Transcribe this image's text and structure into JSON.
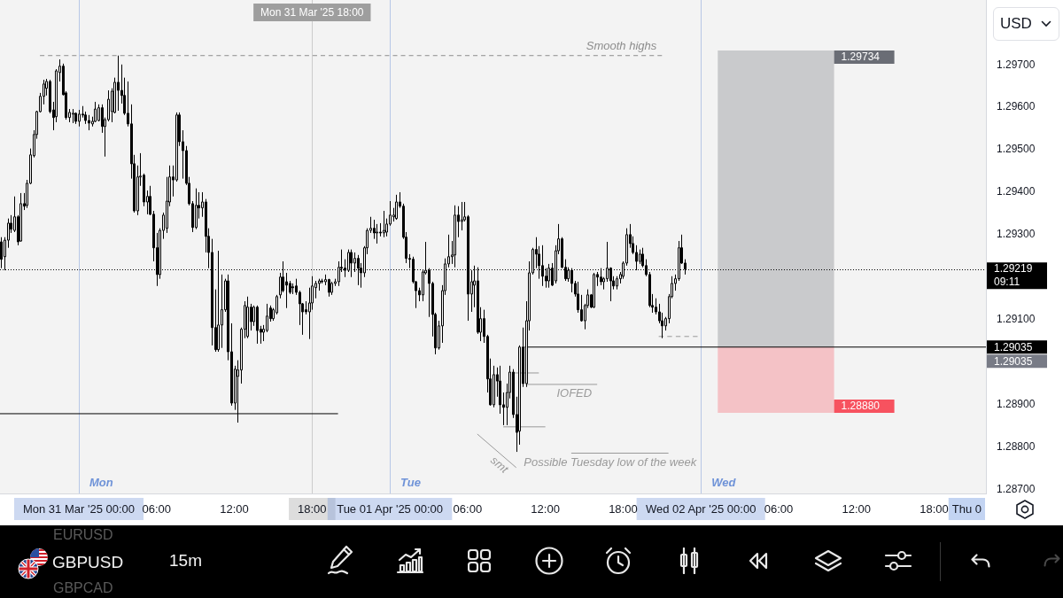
{
  "chart_data": {
    "type": "candlestick",
    "title": "GBPUSD",
    "subtitle": "15m",
    "ylabel": "USD",
    "color": "#000000",
    "x": [
      "2025-03-30T18:00",
      "2025-03-30T18:15",
      "2025-03-30T18:30",
      "2025-03-30T18:45",
      "2025-03-30T19:00",
      "2025-03-30T19:15",
      "2025-03-30T19:30",
      "2025-03-30T19:45",
      "2025-03-30T20:00",
      "2025-03-30T20:15",
      "2025-03-30T20:30",
      "2025-03-30T20:45",
      "2025-03-30T21:00",
      "2025-03-30T21:15",
      "2025-03-30T21:30",
      "2025-03-30T21:45",
      "2025-03-30T22:00",
      "2025-03-30T22:15",
      "2025-03-30T22:30",
      "2025-03-30T22:45",
      "2025-03-30T23:00",
      "2025-03-30T23:15",
      "2025-03-30T23:30",
      "2025-03-30T23:45",
      "2025-03-31T00:00",
      "2025-03-31T00:15",
      "2025-03-31T00:30",
      "2025-03-31T00:45",
      "2025-03-31T01:00",
      "2025-03-31T01:15",
      "2025-03-31T01:30",
      "2025-03-31T01:45",
      "2025-03-31T02:00",
      "2025-03-31T02:15",
      "2025-03-31T02:30",
      "2025-03-31T02:45",
      "2025-03-31T03:00",
      "2025-03-31T03:15",
      "2025-03-31T03:30",
      "2025-03-31T03:45",
      "2025-03-31T04:00",
      "2025-03-31T04:15",
      "2025-03-31T04:30",
      "2025-03-31T04:45",
      "2025-03-31T05:00",
      "2025-03-31T05:15",
      "2025-03-31T05:30",
      "2025-03-31T05:45",
      "2025-03-31T06:00",
      "2025-03-31T06:15",
      "2025-03-31T06:30",
      "2025-03-31T06:45",
      "2025-03-31T07:00",
      "2025-03-31T07:15",
      "2025-03-31T07:30",
      "2025-03-31T07:45",
      "2025-03-31T08:00",
      "2025-03-31T08:15",
      "2025-03-31T08:30",
      "2025-03-31T08:45",
      "2025-03-31T09:00",
      "2025-03-31T09:15",
      "2025-03-31T09:30",
      "2025-03-31T09:45",
      "2025-03-31T10:00",
      "2025-03-31T10:15",
      "2025-03-31T10:30",
      "2025-03-31T10:45",
      "2025-03-31T11:00",
      "2025-03-31T11:15",
      "2025-03-31T11:30",
      "2025-03-31T11:45",
      "2025-03-31T12:00",
      "2025-03-31T12:15",
      "2025-03-31T12:30",
      "2025-03-31T12:45",
      "2025-03-31T13:00",
      "2025-03-31T13:15",
      "2025-03-31T13:30",
      "2025-03-31T13:45",
      "2025-03-31T14:00",
      "2025-03-31T14:15",
      "2025-03-31T14:30",
      "2025-03-31T14:45",
      "2025-03-31T15:00",
      "2025-03-31T15:15",
      "2025-03-31T15:30",
      "2025-03-31T15:45",
      "2025-03-31T16:00",
      "2025-03-31T16:15",
      "2025-03-31T16:30",
      "2025-03-31T16:45",
      "2025-03-31T17:00",
      "2025-03-31T17:15",
      "2025-03-31T17:30",
      "2025-03-31T17:45",
      "2025-03-31T18:00",
      "2025-03-31T18:15",
      "2025-03-31T18:30",
      "2025-03-31T18:45",
      "2025-03-31T19:00",
      "2025-03-31T19:15",
      "2025-03-31T19:30",
      "2025-03-31T19:45",
      "2025-03-31T20:00",
      "2025-03-31T20:15",
      "2025-03-31T20:30",
      "2025-03-31T20:45",
      "2025-03-31T21:00",
      "2025-03-31T21:15",
      "2025-03-31T21:30",
      "2025-03-31T21:45",
      "2025-03-31T22:00",
      "2025-03-31T22:15",
      "2025-03-31T22:30",
      "2025-03-31T22:45",
      "2025-03-31T23:00",
      "2025-03-31T23:15",
      "2025-03-31T23:30",
      "2025-03-31T23:45",
      "2025-04-01T00:00",
      "2025-04-01T00:15",
      "2025-04-01T00:30",
      "2025-04-01T00:45",
      "2025-04-01T01:00",
      "2025-04-01T01:15",
      "2025-04-01T01:30",
      "2025-04-01T01:45",
      "2025-04-01T02:00",
      "2025-04-01T02:15",
      "2025-04-01T02:30",
      "2025-04-01T02:45",
      "2025-04-01T03:00",
      "2025-04-01T03:15",
      "2025-04-01T03:30",
      "2025-04-01T03:45",
      "2025-04-01T04:00",
      "2025-04-01T04:15",
      "2025-04-01T04:30",
      "2025-04-01T04:45",
      "2025-04-01T05:00",
      "2025-04-01T05:15",
      "2025-04-01T05:30",
      "2025-04-01T05:45",
      "2025-04-01T06:00",
      "2025-04-01T06:15",
      "2025-04-01T06:30",
      "2025-04-01T06:45",
      "2025-04-01T07:00",
      "2025-04-01T07:15",
      "2025-04-01T07:30",
      "2025-04-01T07:45",
      "2025-04-01T08:00",
      "2025-04-01T08:15",
      "2025-04-01T08:30",
      "2025-04-01T08:45",
      "2025-04-01T09:00",
      "2025-04-01T09:15",
      "2025-04-01T09:30",
      "2025-04-01T09:45",
      "2025-04-01T10:00",
      "2025-04-01T10:15",
      "2025-04-01T10:30",
      "2025-04-01T10:45",
      "2025-04-01T11:00",
      "2025-04-01T11:15",
      "2025-04-01T11:30",
      "2025-04-01T11:45",
      "2025-04-01T12:00",
      "2025-04-01T12:15",
      "2025-04-01T12:30",
      "2025-04-01T12:45",
      "2025-04-01T13:00",
      "2025-04-01T13:15",
      "2025-04-01T13:30",
      "2025-04-01T13:45",
      "2025-04-01T14:00",
      "2025-04-01T14:15",
      "2025-04-01T14:30",
      "2025-04-01T14:45",
      "2025-04-01T15:00",
      "2025-04-01T15:15",
      "2025-04-01T15:30",
      "2025-04-01T15:45",
      "2025-04-01T16:00",
      "2025-04-01T16:15",
      "2025-04-01T16:30",
      "2025-04-01T16:45",
      "2025-04-01T17:00",
      "2025-04-01T17:15",
      "2025-04-01T17:30",
      "2025-04-01T17:45",
      "2025-04-01T18:00",
      "2025-04-01T18:15",
      "2025-04-01T18:30",
      "2025-04-01T18:45",
      "2025-04-01T19:00",
      "2025-04-01T19:15",
      "2025-04-01T19:30",
      "2025-04-01T19:45",
      "2025-04-01T20:00",
      "2025-04-01T20:15",
      "2025-04-01T20:30",
      "2025-04-01T20:45",
      "2025-04-01T21:00",
      "2025-04-01T21:15",
      "2025-04-01T21:30",
      "2025-04-01T21:45",
      "2025-04-01T22:00",
      "2025-04-01T22:15",
      "2025-04-01T22:30",
      "2025-04-01T22:45"
    ],
    "ohlc": [
      [
        1.29283,
        1.29294,
        1.29221,
        1.29242
      ],
      [
        1.29248,
        1.29294,
        1.29216,
        1.29287
      ],
      [
        1.29287,
        1.29338,
        1.29269,
        1.29327
      ],
      [
        1.29327,
        1.29346,
        1.29304,
        1.29313
      ],
      [
        1.2931,
        1.2939,
        1.29306,
        1.29342
      ],
      [
        1.29342,
        1.29346,
        1.29275,
        1.29283
      ],
      [
        1.29285,
        1.29398,
        1.29283,
        1.29373
      ],
      [
        1.29373,
        1.29398,
        1.29358,
        1.29367
      ],
      [
        1.29369,
        1.29429,
        1.29363,
        1.29421
      ],
      [
        1.29421,
        1.29503,
        1.29419,
        1.29488
      ],
      [
        1.29486,
        1.29546,
        1.29482,
        1.29536
      ],
      [
        1.29536,
        1.29592,
        1.29526,
        1.2959
      ],
      [
        1.2959,
        1.29634,
        1.29588,
        1.29626
      ],
      [
        1.29626,
        1.29665,
        1.29607,
        1.29655
      ],
      [
        1.29645,
        1.29667,
        1.29628,
        1.29661
      ],
      [
        1.29661,
        1.29665,
        1.29586,
        1.2959
      ],
      [
        1.29594,
        1.29613,
        1.29546,
        1.29576
      ],
      [
        1.29578,
        1.2969,
        1.29565,
        1.29686
      ],
      [
        1.29682,
        1.29713,
        1.29661,
        1.29697
      ],
      [
        1.29697,
        1.29703,
        1.29628,
        1.2963
      ],
      [
        1.29634,
        1.29638,
        1.29571,
        1.29576
      ],
      [
        1.29576,
        1.29596,
        1.29565,
        1.29588
      ],
      [
        1.29584,
        1.29596,
        1.29563,
        1.29586
      ],
      [
        1.29586,
        1.29588,
        1.29561,
        1.29567
      ],
      [
        1.29567,
        1.29594,
        1.29555,
        1.29584
      ],
      [
        1.29584,
        1.29603,
        1.29576,
        1.29582
      ],
      [
        1.29582,
        1.2959,
        1.29561,
        1.29569
      ],
      [
        1.29569,
        1.29582,
        1.29546,
        1.29563
      ],
      [
        1.29561,
        1.29578,
        1.29555,
        1.29567
      ],
      [
        1.29567,
        1.29613,
        1.29565,
        1.29596
      ],
      [
        1.29569,
        1.29607,
        1.29567,
        1.29599
      ],
      [
        1.29599,
        1.29607,
        1.2954,
        1.29555
      ],
      [
        1.29555,
        1.29576,
        1.29484,
        1.29571
      ],
      [
        1.29571,
        1.2964,
        1.29567,
        1.29619
      ],
      [
        1.2959,
        1.29645,
        1.29565,
        1.29638
      ],
      [
        1.29588,
        1.2967,
        1.29586,
        1.29659
      ],
      [
        1.29659,
        1.29722,
        1.29592,
        1.2964
      ],
      [
        1.2964,
        1.29701,
        1.29609,
        1.29628
      ],
      [
        1.29628,
        1.2967,
        1.29582,
        1.29586
      ],
      [
        1.29586,
        1.29661,
        1.29555,
        1.29561
      ],
      [
        1.29561,
        1.29607,
        1.29432,
        1.29467
      ],
      [
        1.29467,
        1.29488,
        1.29352,
        1.29356
      ],
      [
        1.29356,
        1.29463,
        1.29346,
        1.29436
      ],
      [
        1.29436,
        1.29492,
        1.29415,
        1.29438
      ],
      [
        1.2944,
        1.29444,
        1.29367,
        1.29377
      ],
      [
        1.29377,
        1.29404,
        1.29348,
        1.2939
      ],
      [
        1.2939,
        1.29415,
        1.29346,
        1.29348
      ],
      [
        1.29348,
        1.29356,
        1.29237,
        1.29269
      ],
      [
        1.29269,
        1.29304,
        1.29179,
        1.29206
      ],
      [
        1.29206,
        1.29315,
        1.29196,
        1.2931
      ],
      [
        1.2931,
        1.29352,
        1.2929,
        1.29346
      ],
      [
        1.29315,
        1.29436,
        1.29304,
        1.29379
      ],
      [
        1.29377,
        1.29463,
        1.29367,
        1.29436
      ],
      [
        1.29436,
        1.29463,
        1.2939,
        1.29429
      ],
      [
        1.29429,
        1.29588,
        1.29425,
        1.29582
      ],
      [
        1.29582,
        1.29588,
        1.29509,
        1.29519
      ],
      [
        1.29519,
        1.29546,
        1.29432,
        1.29498
      ],
      [
        1.29498,
        1.29509,
        1.29417,
        1.29421
      ],
      [
        1.29421,
        1.29436,
        1.29369,
        1.29373
      ],
      [
        1.29373,
        1.29379,
        1.29306,
        1.29317
      ],
      [
        1.29317,
        1.29409,
        1.29313,
        1.29369
      ],
      [
        1.29369,
        1.294,
        1.29338,
        1.29363
      ],
      [
        1.29363,
        1.294,
        1.29342,
        1.29377
      ],
      [
        1.29377,
        1.29384,
        1.29258,
        1.29296
      ],
      [
        1.29296,
        1.29315,
        1.29221,
        1.29258
      ],
      [
        1.29258,
        1.2929,
        1.29039,
        1.29081
      ],
      [
        1.29081,
        1.29171,
        1.29024,
        1.29029
      ],
      [
        1.29029,
        1.29262,
        1.29024,
        1.29087
      ],
      [
        1.29087,
        1.29206,
        1.29033,
        1.29123
      ],
      [
        1.29123,
        1.29196,
        1.29118,
        1.29191
      ],
      [
        1.29191,
        1.29206,
        1.29004,
        1.29024
      ],
      [
        1.29024,
        1.29091,
        1.28897,
        1.28903
      ],
      [
        1.28903,
        1.28991,
        1.28887,
        1.28983
      ],
      [
        1.28966,
        1.29004,
        1.28857,
        1.28981
      ],
      [
        1.28981,
        1.29081,
        1.28949,
        1.29077
      ],
      [
        1.29077,
        1.29143,
        1.29056,
        1.29133
      ],
      [
        1.2906,
        1.29154,
        1.29056,
        1.29129
      ],
      [
        1.29129,
        1.29137,
        1.29074,
        1.29095
      ],
      [
        1.29095,
        1.29133,
        1.29085,
        1.29129
      ],
      [
        1.29129,
        1.29133,
        1.29043,
        1.29074
      ],
      [
        1.29077,
        1.29085,
        1.29043,
        1.2907
      ],
      [
        1.2907,
        1.29087,
        1.29049,
        1.29077
      ],
      [
        1.29074,
        1.29137,
        1.2907,
        1.29108
      ],
      [
        1.29127,
        1.29133,
        1.29095,
        1.29102
      ],
      [
        1.29102,
        1.29127,
        1.29097,
        1.29123
      ],
      [
        1.29116,
        1.29158,
        1.29112,
        1.29154
      ],
      [
        1.29158,
        1.2921,
        1.2915,
        1.292
      ],
      [
        1.292,
        1.29237,
        1.29164,
        1.29168
      ],
      [
        1.29189,
        1.2921,
        1.29127,
        1.29181
      ],
      [
        1.29185,
        1.29191,
        1.2916,
        1.29164
      ],
      [
        1.29177,
        1.29185,
        1.2916,
        1.29175
      ],
      [
        1.29179,
        1.29196,
        1.29158,
        1.29164
      ],
      [
        1.29164,
        1.29168,
        1.29087,
        1.29137
      ],
      [
        1.29137,
        1.29139,
        1.29064,
        1.29118
      ],
      [
        1.29123,
        1.29143,
        1.29112,
        1.29118
      ],
      [
        1.29118,
        1.29175,
        1.29054,
        1.29139
      ],
      [
        1.29139,
        1.29202,
        1.29123,
        1.29179
      ],
      [
        1.29175,
        1.29191,
        1.2915,
        1.29185
      ],
      [
        1.29185,
        1.29196,
        1.29168,
        1.29191
      ],
      [
        1.29191,
        1.29196,
        1.29185,
        1.29189
      ],
      [
        1.29189,
        1.29206,
        1.29181,
        1.29194
      ],
      [
        1.29194,
        1.29196,
        1.29154,
        1.29164
      ],
      [
        1.29164,
        1.29189,
        1.29158,
        1.29185
      ],
      [
        1.29185,
        1.29196,
        1.29179,
        1.29189
      ],
      [
        1.29189,
        1.29237,
        1.29179,
        1.29223
      ],
      [
        1.29223,
        1.29265,
        1.29212,
        1.29221
      ],
      [
        1.29221,
        1.29242,
        1.292,
        1.29216
      ],
      [
        1.29216,
        1.29265,
        1.29212,
        1.29258
      ],
      [
        1.29258,
        1.29265,
        1.292,
        1.29233
      ],
      [
        1.29233,
        1.29258,
        1.29212,
        1.29244
      ],
      [
        1.29244,
        1.29252,
        1.29181,
        1.29221
      ],
      [
        1.29221,
        1.29233,
        1.29175,
        1.2921
      ],
      [
        1.2921,
        1.29273,
        1.292,
        1.29269
      ],
      [
        1.29269,
        1.29315,
        1.29254,
        1.2931
      ],
      [
        1.2931,
        1.29342,
        1.29304,
        1.29315
      ],
      [
        1.29315,
        1.29335,
        1.2929,
        1.29304
      ],
      [
        1.29304,
        1.29325,
        1.29279,
        1.29306
      ],
      [
        1.29306,
        1.29327,
        1.29296,
        1.29304
      ],
      [
        1.29304,
        1.29356,
        1.29294,
        1.2931
      ],
      [
        1.29306,
        1.29338,
        1.29296,
        1.29325
      ],
      [
        1.29325,
        1.29379,
        1.29321,
        1.29346
      ],
      [
        1.29342,
        1.29363,
        1.29331,
        1.29346
      ],
      [
        1.29338,
        1.29394,
        1.29335,
        1.29377
      ],
      [
        1.29377,
        1.294,
        1.29363,
        1.29367
      ],
      [
        1.29367,
        1.29373,
        1.2929,
        1.29294
      ],
      [
        1.29294,
        1.29306,
        1.29233,
        1.29244
      ],
      [
        1.29244,
        1.29254,
        1.29221,
        1.29242
      ],
      [
        1.29242,
        1.29248,
        1.29185,
        1.29189
      ],
      [
        1.29189,
        1.29191,
        1.29127,
        1.29168
      ],
      [
        1.29168,
        1.29175,
        1.29143,
        1.29158
      ],
      [
        1.29158,
        1.29216,
        1.29143,
        1.29212
      ],
      [
        1.2921,
        1.29283,
        1.29206,
        1.29216
      ],
      [
        1.29216,
        1.29221,
        1.29106,
        1.29185
      ],
      [
        1.29185,
        1.29189,
        1.2906,
        1.29112
      ],
      [
        1.29112,
        1.29116,
        1.29018,
        1.29033
      ],
      [
        1.29033,
        1.29097,
        1.29029,
        1.29085
      ],
      [
        1.29085,
        1.29181,
        1.29045,
        1.29168
      ],
      [
        1.29168,
        1.29244,
        1.29158,
        1.29231
      ],
      [
        1.29231,
        1.293,
        1.29223,
        1.29248
      ],
      [
        1.29248,
        1.29285,
        1.29231,
        1.29252
      ],
      [
        1.29252,
        1.29369,
        1.29223,
        1.29346
      ],
      [
        1.29346,
        1.29367,
        1.29294,
        1.29331
      ],
      [
        1.29331,
        1.29377,
        1.2931,
        1.29335
      ],
      [
        1.29335,
        1.29377,
        1.29331,
        1.29342
      ],
      [
        1.29342,
        1.29346,
        1.29097,
        1.2916
      ],
      [
        1.2916,
        1.29216,
        1.29118,
        1.29189
      ],
      [
        1.29181,
        1.29227,
        1.29129,
        1.29191
      ],
      [
        1.29191,
        1.29223,
        1.29066,
        1.2907
      ],
      [
        1.2907,
        1.29129,
        1.29049,
        1.29102
      ],
      [
        1.29102,
        1.29123,
        1.29045,
        1.2906
      ],
      [
        1.2906,
        1.29064,
        1.28928,
        1.2896
      ],
      [
        1.2896,
        1.29008,
        1.28897,
        1.28899
      ],
      [
        1.28899,
        1.28991,
        1.28893,
        1.2897
      ],
      [
        1.2897,
        1.28987,
        1.28918,
        1.28955
      ],
      [
        1.28955,
        1.28991,
        1.28878,
        1.28899
      ],
      [
        1.28899,
        1.28928,
        1.28851,
        1.28893
      ],
      [
        1.28893,
        1.28949,
        1.28851,
        1.28928
      ],
      [
        1.28928,
        1.28991,
        1.28914,
        1.28976
      ],
      [
        1.28976,
        1.28983,
        1.28868,
        1.28876
      ],
      [
        1.28876,
        1.28918,
        1.28788,
        1.28834
      ],
      [
        1.28837,
        1.29039,
        1.28805,
        1.29035
      ],
      [
        1.29035,
        1.29081,
        1.28941,
        1.28949
      ],
      [
        1.28949,
        1.29143,
        1.28941,
        1.29097
      ],
      [
        1.29097,
        1.29237,
        1.29074,
        1.2921
      ],
      [
        1.2921,
        1.29269,
        1.29206,
        1.29265
      ],
      [
        1.29265,
        1.29294,
        1.29221,
        1.29254
      ],
      [
        1.29254,
        1.29273,
        1.29196,
        1.29227
      ],
      [
        1.29227,
        1.29275,
        1.29179,
        1.29202
      ],
      [
        1.29202,
        1.29221,
        1.29175,
        1.29191
      ],
      [
        1.29191,
        1.29231,
        1.29175,
        1.29221
      ],
      [
        1.29221,
        1.29233,
        1.29179,
        1.29181
      ],
      [
        1.29191,
        1.29275,
        1.29185,
        1.29262
      ],
      [
        1.29262,
        1.29325,
        1.29254,
        1.2929
      ],
      [
        1.2929,
        1.29294,
        1.29221,
        1.29223
      ],
      [
        1.29223,
        1.29242,
        1.29191,
        1.29196
      ],
      [
        1.29196,
        1.29223,
        1.29189,
        1.29216
      ],
      [
        1.29216,
        1.29221,
        1.29164,
        1.29185
      ],
      [
        1.29185,
        1.29191,
        1.29154,
        1.2916
      ],
      [
        1.2916,
        1.29189,
        1.29116,
        1.29123
      ],
      [
        1.29123,
        1.29158,
        1.29095,
        1.29097
      ],
      [
        1.29097,
        1.29137,
        1.29077,
        1.29133
      ],
      [
        1.29133,
        1.29171,
        1.29127,
        1.29158
      ],
      [
        1.29158,
        1.2916,
        1.29127,
        1.29129
      ],
      [
        1.29129,
        1.2921,
        1.29127,
        1.29206
      ],
      [
        1.29206,
        1.29212,
        1.29179,
        1.292
      ],
      [
        1.292,
        1.29221,
        1.29181,
        1.29189
      ],
      [
        1.29189,
        1.292,
        1.29171,
        1.29196
      ],
      [
        1.29196,
        1.29283,
        1.29189,
        1.29221
      ],
      [
        1.29221,
        1.29223,
        1.29143,
        1.29191
      ],
      [
        1.29191,
        1.29202,
        1.29171,
        1.29179
      ],
      [
        1.29179,
        1.29202,
        1.29171,
        1.29196
      ],
      [
        1.29196,
        1.29212,
        1.29185,
        1.29206
      ],
      [
        1.29202,
        1.29237,
        1.29196,
        1.29233
      ],
      [
        1.29233,
        1.29315,
        1.29227,
        1.293
      ],
      [
        1.293,
        1.29325,
        1.29269,
        1.29279
      ],
      [
        1.29279,
        1.29296,
        1.29254,
        1.29258
      ],
      [
        1.29258,
        1.29275,
        1.29216,
        1.29237
      ],
      [
        1.29237,
        1.29265,
        1.29231,
        1.29254
      ],
      [
        1.29254,
        1.29269,
        1.29223,
        1.29227
      ],
      [
        1.29227,
        1.29242,
        1.29202,
        1.29206
      ],
      [
        1.29206,
        1.29212,
        1.29129,
        1.29133
      ],
      [
        1.29133,
        1.2916,
        1.29116,
        1.29129
      ],
      [
        1.29129,
        1.2915,
        1.29112,
        1.29118
      ],
      [
        1.29118,
        1.29137,
        1.29091,
        1.29097
      ],
      [
        1.29097,
        1.29116,
        1.29056,
        1.29085
      ],
      [
        1.29085,
        1.29106,
        1.29074,
        1.29102
      ],
      [
        1.29102,
        1.2916,
        1.29091,
        1.29154
      ],
      [
        1.29154,
        1.29202,
        1.2915,
        1.29185
      ],
      [
        1.29185,
        1.29206,
        1.29168,
        1.29196
      ],
      [
        1.29196,
        1.29285,
        1.29191,
        1.29269
      ],
      [
        1.29269,
        1.293,
        1.29231,
        1.29233
      ],
      [
        1.29233,
        1.29242,
        1.29206,
        1.29219
      ]
    ],
    "xlim": [
      "2025-03-30T17:55",
      "2025-04-02T22:00"
    ],
    "xticks": [
      {
        "value": "2025-03-31T00:00",
        "label": "Mon 31 Mar '25 00:00"
      },
      {
        "value": "2025-03-31T06:00",
        "label": "06:00"
      },
      {
        "value": "2025-03-31T12:00",
        "label": "12:00"
      },
      {
        "value": "2025-03-31T18:00",
        "label": "18:00"
      },
      {
        "value": "2025-04-01T00:00",
        "label": "Tue 01 Apr '25 00:00"
      },
      {
        "value": "2025-04-01T06:00",
        "label": "06:00"
      },
      {
        "value": "2025-04-01T12:00",
        "label": "12:00"
      },
      {
        "value": "2025-04-01T18:00",
        "label": "18:00"
      },
      {
        "value": "2025-04-02T00:00",
        "label": "Wed 02 Apr '25 00:00"
      },
      {
        "value": "2025-04-02T06:00",
        "label": "06:00"
      },
      {
        "value": "2025-04-02T12:00",
        "label": "12:00"
      },
      {
        "value": "2025-04-02T18:00",
        "label": "18:00"
      }
    ],
    "ylim": [
      1.2869,
      1.29853
    ],
    "yticks": [
      {
        "value": 1.287,
        "label": "1.28700"
      },
      {
        "value": 1.288,
        "label": "1.28800"
      },
      {
        "value": 1.289,
        "label": "1.28900"
      },
      {
        "value": 1.291,
        "label": "1.29100"
      },
      {
        "value": 1.293,
        "label": "1.29300"
      },
      {
        "value": 1.294,
        "label": "1.29400"
      },
      {
        "value": 1.295,
        "label": "1.29500"
      },
      {
        "value": 1.296,
        "label": "1.29600"
      },
      {
        "value": 1.297,
        "label": "1.29700"
      }
    ],
    "series": [
      {
        "type": "line",
        "name": "Smooth highs",
        "x": [
          "2025-03-30T21:00",
          "2025-04-01T21:00"
        ],
        "values": [
          1.29722,
          1.29722
        ],
        "color": "#8c8c8c",
        "line_style": "dashed"
      },
      {
        "type": "line",
        "x": [
          "2025-03-30T17:55",
          "2025-03-31T20:00"
        ],
        "values": [
          1.28878,
          1.28878
        ],
        "color": "#000000"
      },
      {
        "type": "line",
        "x": [
          "2025-04-01T10:25",
          "2025-04-02T22:00"
        ],
        "values": [
          1.29035,
          1.29035
        ],
        "color": "#000000",
        "value_labels": [
          null,
          "1.29035"
        ]
      },
      {
        "type": "line",
        "name": "IOFED",
        "x": [
          "2025-04-01T10:30",
          "2025-04-01T16:00"
        ],
        "values": [
          1.28947,
          1.28947
        ],
        "color": "#9a9a9a"
      },
      {
        "type": "line",
        "x": [
          "2025-04-01T09:30",
          "2025-04-01T11:30"
        ],
        "values": [
          1.28974,
          1.28974
        ],
        "color": "#9a9a9a"
      },
      {
        "type": "line",
        "x": [
          "2025-04-01T08:45",
          "2025-04-01T12:00"
        ],
        "values": [
          1.28847,
          1.28847
        ],
        "color": "#9a9a9a"
      },
      {
        "type": "line",
        "name": "Possible Tuesday low of the week",
        "x": [
          "2025-04-01T14:00",
          "2025-04-01T21:30"
        ],
        "values": [
          1.28785,
          1.28785
        ],
        "color": "#9a9a9a"
      },
      {
        "type": "line",
        "x": [
          "2025-04-01T20:45",
          "2025-04-01T23:45"
        ],
        "values": [
          1.2906,
          1.2906
        ],
        "color": "#9a9a9a",
        "line_style": "dashed"
      },
      {
        "type": "line",
        "name": "smt",
        "x": [
          "2025-04-01T06:45",
          "2025-04-01T09:45"
        ],
        "values": [
          1.2883,
          1.28751
        ],
        "color": "#9a9a9a"
      }
    ],
    "ref_lines": [
      {
        "axis": "x",
        "value": "2025-03-31T00:00",
        "label": "Mon",
        "color": "#6f93d8"
      },
      {
        "axis": "x",
        "value": "2025-03-31T18:00",
        "label": "Mon 31 Mar '25 18:00",
        "color": "#9e9e9e"
      },
      {
        "axis": "x",
        "value": "2025-04-01T00:00",
        "label": "Tue",
        "color": "#6f93d8"
      },
      {
        "axis": "x",
        "value": "2025-04-02T00:00",
        "label": "Wed",
        "color": "#6f93d8"
      },
      {
        "axis": "y",
        "value": 1.29219,
        "label": "1.29219\n09:11",
        "color": "#000000",
        "line_style": "dotted"
      }
    ],
    "bands": [
      {
        "axis": "y",
        "from": 1.29035,
        "to": 1.29734,
        "color": "#6a6d75",
        "label": "1.29734"
      },
      {
        "axis": "y",
        "from": 1.29035,
        "to": 1.2888,
        "color": "#f7525f",
        "label": "1.28880"
      }
    ],
    "annotations": [
      "EURUSD",
      "GBPCAD",
      "Thu 0",
      {
        "text": "1.29035",
        "x": "2025-04-02T22:00",
        "y": 1.29035
      }
    ]
  }
}
